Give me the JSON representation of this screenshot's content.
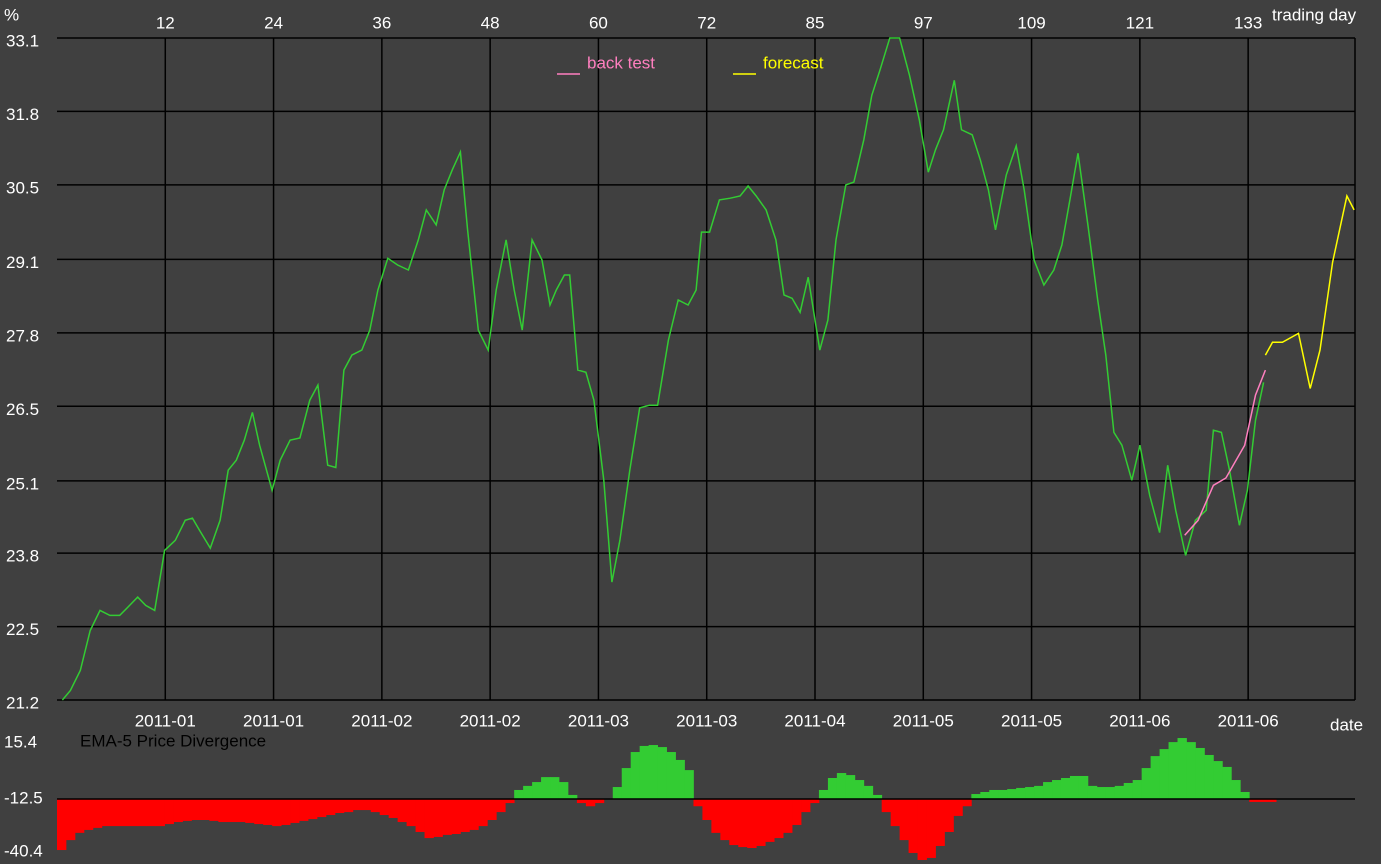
{
  "chart_data": [
    {
      "type": "line",
      "y_axis_label": "%",
      "x_axis_label": "trading day",
      "date_axis_label": "date",
      "xlim": [
        0,
        144.8
      ],
      "xticks": [
        {
          "value": 12.08,
          "label": "12"
        },
        {
          "value": 24.16,
          "label": "24"
        },
        {
          "value": 36.24,
          "label": "36"
        },
        {
          "value": 48.32,
          "label": "48"
        },
        {
          "value": 60.4,
          "label": "60"
        },
        {
          "value": 72.48,
          "label": "72"
        },
        {
          "value": 84.56,
          "label": "85"
        },
        {
          "value": 96.64,
          "label": "97"
        },
        {
          "value": 108.72,
          "label": "109"
        },
        {
          "value": 120.8,
          "label": "121"
        },
        {
          "value": 132.88,
          "label": "133"
        }
      ],
      "date_ticks": [
        {
          "value": 12.08,
          "label": "2011-01"
        },
        {
          "value": 24.16,
          "label": "2011-01"
        },
        {
          "value": 36.24,
          "label": "2011-02"
        },
        {
          "value": 48.32,
          "label": "2011-02"
        },
        {
          "value": 60.4,
          "label": "2011-03"
        },
        {
          "value": 72.48,
          "label": "2011-03"
        },
        {
          "value": 84.56,
          "label": "2011-04"
        },
        {
          "value": 96.64,
          "label": "2011-05"
        },
        {
          "value": 108.72,
          "label": "2011-05"
        },
        {
          "value": 120.8,
          "label": "2011-06"
        },
        {
          "value": 132.88,
          "label": "2011-06"
        }
      ],
      "ylim": [
        21.2,
        33.1
      ],
      "yticks": [
        21.2,
        {
          "value": 22.52,
          "label": "22.5"
        },
        {
          "value": 23.84,
          "label": "23.8"
        },
        {
          "value": 25.14,
          "label": "25.1"
        },
        {
          "value": 26.48,
          "label": "26.5"
        },
        27.8,
        {
          "value": 29.12,
          "label": "29.1"
        },
        {
          "value": 30.46,
          "label": "30.5"
        },
        {
          "value": 31.78,
          "label": "31.8"
        },
        33.1
      ],
      "grid": true,
      "legend": "top",
      "series": [
        {
          "color": "#33cc33",
          "x": [
            0.6,
            1.5,
            2.6,
            3.7,
            4.8,
            5.9,
            7.0,
            8.1,
            9.0,
            9.9,
            10.9,
            12.0,
            13.2,
            14.3,
            15.1,
            15.9,
            17.1,
            18.2,
            19.1,
            20.0,
            20.9,
            21.8,
            22.6,
            24.0,
            24.9,
            26.0,
            27.1,
            28.2,
            29.1,
            30.2,
            31.1,
            32.0,
            32.9,
            34.0,
            34.9,
            35.8,
            36.9,
            38.0,
            39.2,
            40.3,
            41.2,
            42.3,
            43.2,
            44.1,
            45.0,
            45.8,
            47.0,
            48.1,
            49.0,
            50.1,
            51.0,
            51.9,
            53.0,
            54.1,
            55.0,
            55.7,
            56.6,
            57.2,
            58.1,
            59.0,
            59.9,
            61.0,
            61.9,
            62.8,
            63.9,
            65.0,
            66.1,
            67.0,
            68.2,
            69.3,
            70.4,
            71.3,
            71.9,
            72.8,
            73.9,
            75.1,
            76.2,
            77.1,
            78.0,
            79.1,
            80.2,
            81.1,
            82.0,
            82.9,
            83.8,
            85.1,
            86.0,
            86.9,
            88.0,
            88.9,
            90.0,
            90.9,
            91.8,
            92.9,
            94.0,
            95.1,
            96.2,
            97.2,
            98.0,
            98.9,
            100.1,
            100.9,
            102.1,
            103.0,
            103.9,
            104.7,
            105.9,
            107.0,
            107.9,
            109.0,
            110.1,
            111.2,
            112.1,
            113.0,
            113.9,
            115.0,
            116.1,
            117.0,
            117.9,
            118.8,
            119.9,
            120.8,
            121.9,
            123.0,
            123.9,
            124.8,
            125.9,
            127.0,
            128.2,
            129.0,
            129.9,
            130.8,
            131.9,
            132.8,
            133.7,
            134.6
          ],
          "values": [
            21.2,
            21.37,
            21.73,
            22.45,
            22.81,
            22.72,
            22.72,
            22.9,
            23.05,
            22.9,
            22.81,
            23.89,
            24.07,
            24.43,
            24.47,
            24.25,
            23.93,
            24.43,
            25.33,
            25.51,
            25.87,
            26.37,
            25.78,
            24.97,
            25.51,
            25.87,
            25.91,
            26.59,
            26.86,
            25.42,
            25.38,
            27.13,
            27.4,
            27.49,
            27.85,
            28.57,
            29.14,
            29.02,
            28.93,
            29.47,
            30.01,
            29.74,
            30.37,
            30.73,
            31.05,
            29.65,
            27.85,
            27.49,
            28.57,
            29.47,
            28.57,
            27.85,
            29.47,
            29.11,
            28.3,
            28.57,
            28.84,
            28.84,
            27.13,
            27.09,
            26.59,
            25.15,
            23.32,
            24.07,
            25.33,
            26.45,
            26.5,
            26.5,
            27.67,
            28.39,
            28.3,
            28.57,
            29.61,
            29.61,
            30.19,
            30.22,
            30.26,
            30.44,
            30.26,
            30.01,
            29.47,
            28.48,
            28.42,
            28.17,
            28.8,
            27.49,
            28.03,
            29.47,
            30.46,
            30.51,
            31.27,
            32.07,
            32.52,
            33.1,
            33.1,
            32.43,
            31.63,
            30.69,
            31.09,
            31.45,
            32.34,
            31.45,
            31.36,
            30.91,
            30.37,
            29.65,
            30.64,
            31.16,
            30.37,
            29.11,
            28.66,
            28.93,
            29.38,
            30.19,
            31.03,
            29.74,
            28.39,
            27.4,
            26.01,
            25.78,
            25.15,
            25.78,
            24.88,
            24.21,
            25.42,
            24.61,
            23.8,
            24.43,
            24.61,
            26.05,
            26.01,
            25.33,
            24.34,
            24.97,
            26.23,
            26.91
          ]
        },
        {
          "name": "back test",
          "color": "#ff7fbf",
          "x": [
            125.8,
            127.3,
            129.0,
            130.4,
            132.5,
            133.7,
            134.8
          ],
          "values": [
            24.16,
            24.43,
            25.06,
            25.19,
            25.78,
            26.68,
            27.13
          ]
        },
        {
          "name": "forecast",
          "color": "#ffff00",
          "x": [
            134.8,
            135.6,
            136.7,
            138.5,
            139.8,
            140.9,
            142.3,
            143.9,
            144.7
          ],
          "values": [
            27.4,
            27.63,
            27.63,
            27.79,
            26.8,
            27.49,
            29.07,
            30.26,
            30.01
          ]
        }
      ]
    },
    {
      "type": "bar",
      "title": "EMA-5 Price Divergence",
      "xlim": [
        0,
        144.8
      ],
      "ylim": [
        -40.4,
        15.4
      ],
      "yticks": [
        -40.4,
        -12.5,
        15.4
      ],
      "baseline": -12.5,
      "up_color": "#33cc33",
      "down_color": "#ff0000",
      "x": [
        0,
        1,
        2,
        3,
        4,
        5,
        6,
        7,
        8,
        9,
        10,
        11,
        12,
        13,
        14,
        15,
        16,
        17,
        18,
        19,
        20,
        21,
        22,
        23,
        24,
        25,
        26,
        27,
        28,
        29,
        30,
        31,
        32,
        33,
        34,
        35,
        36,
        37,
        38,
        39,
        40,
        41,
        42,
        43,
        44,
        45,
        46,
        47,
        48,
        49,
        50,
        51,
        52,
        53,
        54,
        55,
        56,
        57,
        58,
        59,
        60,
        61,
        62,
        63,
        64,
        65,
        66,
        67,
        68,
        69,
        70,
        71,
        72,
        73,
        74,
        75,
        76,
        77,
        78,
        79,
        80,
        81,
        82,
        83,
        84,
        85,
        86,
        87,
        88,
        89,
        90,
        91,
        92,
        93,
        94,
        95,
        96,
        97,
        98,
        99,
        100,
        101,
        102,
        103,
        104,
        105,
        106,
        107,
        108,
        109,
        110,
        111,
        112,
        113,
        114,
        115,
        116,
        117,
        118,
        119,
        120,
        121,
        122,
        123,
        124,
        125,
        126,
        127,
        128,
        129,
        130,
        131,
        132,
        133,
        134,
        135
      ],
      "values": [
        -35.1,
        -30.7,
        -27.5,
        -26.2,
        -25.3,
        -24.5,
        -24.5,
        -24.5,
        -24.5,
        -24.5,
        -24.5,
        -24.5,
        -23.6,
        -22.7,
        -22.2,
        -21.8,
        -21.8,
        -22.2,
        -22.7,
        -22.7,
        -22.7,
        -23.1,
        -23.6,
        -24.0,
        -24.5,
        -24.0,
        -23.1,
        -22.2,
        -21.4,
        -20.5,
        -19.6,
        -18.7,
        -18.3,
        -17.4,
        -17.4,
        -18.3,
        -19.6,
        -20.9,
        -22.7,
        -24.5,
        -27.1,
        -29.8,
        -29.3,
        -28.4,
        -28.0,
        -27.1,
        -26.2,
        -24.5,
        -21.8,
        -18.3,
        -14.3,
        -8.5,
        -6.7,
        -5.0,
        -2.8,
        -2.8,
        -5.0,
        -10.7,
        -14.3,
        -15.7,
        -14.3,
        -12.4,
        -7.2,
        1.2,
        8.3,
        11.0,
        11.4,
        10.5,
        8.3,
        4.8,
        0.3,
        -15.7,
        -21.8,
        -27.5,
        -30.7,
        -32.9,
        -33.8,
        -34.2,
        -33.3,
        -31.5,
        -29.8,
        -27.5,
        -24.0,
        -18.3,
        -14.3,
        -8.5,
        -3.2,
        -1.0,
        -1.9,
        -4.1,
        -6.7,
        -10.7,
        -18.3,
        -24.5,
        -30.7,
        -36.4,
        -39.5,
        -38.6,
        -33.3,
        -27.1,
        -20.0,
        -15.7,
        -10.3,
        -9.4,
        -8.5,
        -8.5,
        -8.1,
        -7.6,
        -7.2,
        -6.7,
        -5.0,
        -4.1,
        -3.2,
        -2.3,
        -2.3,
        -6.7,
        -7.2,
        -7.2,
        -6.7,
        -5.4,
        -4.1,
        1.2,
        6.5,
        9.6,
        12.7,
        14.5,
        12.7,
        10.1,
        7.0,
        4.3,
        1.7,
        -4.1,
        -9.4,
        -13.8,
        -13.8,
        -13.8
      ]
    }
  ]
}
